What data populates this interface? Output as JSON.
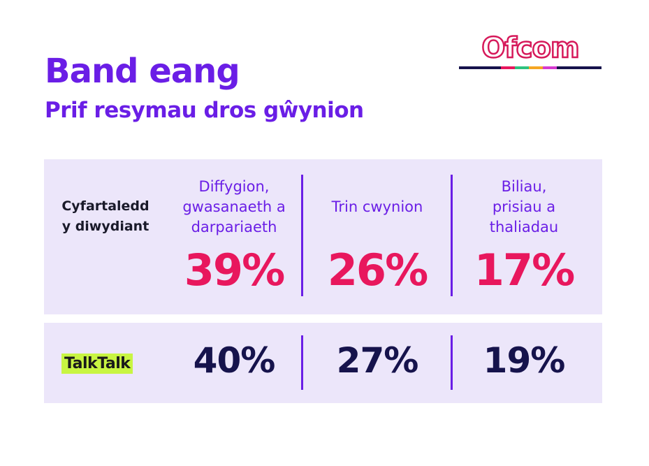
{
  "logo": "Ofcom",
  "header": {
    "title": "Band eang",
    "subtitle": "Prif resymau dros gŵynion"
  },
  "table": {
    "columns": [
      [
        "Diffygion,",
        "gwasanaeth a",
        "darpariaeth"
      ],
      [
        "Trin cwynion"
      ],
      [
        "Biliau,",
        "prisiau a",
        "thaliadau"
      ]
    ],
    "rows": [
      {
        "label": [
          "Cyfartaledd",
          "y diwydiant"
        ],
        "cells": [
          "39%",
          "26%",
          "17%"
        ]
      },
      {
        "label": [
          "TalkTalk"
        ],
        "cells": [
          "40%",
          "27%",
          "19%"
        ]
      }
    ]
  }
}
